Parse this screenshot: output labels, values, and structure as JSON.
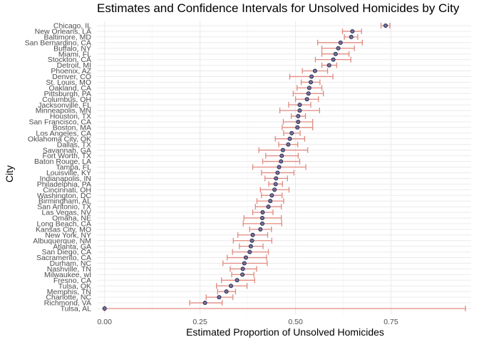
{
  "chart_data": {
    "type": "scatter",
    "title": "Estimates and Confidence Intervals for Unsolved Homicides by City",
    "xlabel": "Estimated Proportion of Unsolved Homicides",
    "ylabel": "City",
    "xlim": [
      -0.02,
      0.96
    ],
    "xticks": [
      "0.00",
      "0.25",
      "0.50",
      "0.75"
    ],
    "xtick_values": [
      0,
      0.25,
      0.5,
      0.75
    ],
    "grid": true,
    "colors": {
      "point_fill": "#6f6f9f",
      "point_edge": "#1f1f3a",
      "errorbar": "#e08a80",
      "grid": "#ebebeb"
    },
    "cities": [
      {
        "name": "Chicago, IL",
        "est": 0.736,
        "lo": 0.724,
        "hi": 0.747
      },
      {
        "name": "New Orleans, LA",
        "est": 0.649,
        "lo": 0.623,
        "hi": 0.673
      },
      {
        "name": "Baltimore, MD",
        "est": 0.646,
        "lo": 0.628,
        "hi": 0.663
      },
      {
        "name": "San Bernardino, CA",
        "est": 0.618,
        "lo": 0.558,
        "hi": 0.675
      },
      {
        "name": "Buffalo, NY",
        "est": 0.612,
        "lo": 0.569,
        "hi": 0.654
      },
      {
        "name": "Miami, FL",
        "est": 0.605,
        "lo": 0.569,
        "hi": 0.64
      },
      {
        "name": "Stockton, CA",
        "est": 0.599,
        "lo": 0.552,
        "hi": 0.645
      },
      {
        "name": "Detroit, MI",
        "est": 0.588,
        "lo": 0.569,
        "hi": 0.608
      },
      {
        "name": "Phoenix, AZ",
        "est": 0.551,
        "lo": 0.518,
        "hi": 0.584
      },
      {
        "name": "Denver, CO",
        "est": 0.542,
        "lo": 0.485,
        "hi": 0.598
      },
      {
        "name": "St. Louis, MO",
        "est": 0.54,
        "lo": 0.515,
        "hi": 0.564
      },
      {
        "name": "Oakland, CA",
        "est": 0.536,
        "lo": 0.504,
        "hi": 0.569
      },
      {
        "name": "Pittsburgh, PA",
        "est": 0.534,
        "lo": 0.494,
        "hi": 0.573
      },
      {
        "name": "Columbus, OH",
        "est": 0.53,
        "lo": 0.5,
        "hi": 0.56
      },
      {
        "name": "Jacksonville, FL",
        "est": 0.511,
        "lo": 0.482,
        "hi": 0.54
      },
      {
        "name": "Minneapolis, MN",
        "est": 0.511,
        "lo": 0.459,
        "hi": 0.563
      },
      {
        "name": "Houston, TX",
        "est": 0.507,
        "lo": 0.489,
        "hi": 0.526
      },
      {
        "name": "San Francisco, CA",
        "est": 0.507,
        "lo": 0.468,
        "hi": 0.545
      },
      {
        "name": "Boston, MA",
        "est": 0.505,
        "lo": 0.465,
        "hi": 0.545
      },
      {
        "name": "Los Angeles, CA",
        "est": 0.49,
        "lo": 0.469,
        "hi": 0.512
      },
      {
        "name": "Oklahoma City, OK",
        "est": 0.485,
        "lo": 0.447,
        "hi": 0.524
      },
      {
        "name": "Dallas, TX",
        "est": 0.481,
        "lo": 0.456,
        "hi": 0.506
      },
      {
        "name": "Savannah, GA",
        "est": 0.467,
        "lo": 0.404,
        "hi": 0.532
      },
      {
        "name": "Fort Worth, TX",
        "est": 0.464,
        "lo": 0.422,
        "hi": 0.507
      },
      {
        "name": "Baton Rouge, LA",
        "est": 0.462,
        "lo": 0.414,
        "hi": 0.511
      },
      {
        "name": "Tampa, FL",
        "est": 0.457,
        "lo": 0.388,
        "hi": 0.527
      },
      {
        "name": "Louisville, KY",
        "est": 0.453,
        "lo": 0.411,
        "hi": 0.496
      },
      {
        "name": "Indianapolis, IN",
        "est": 0.449,
        "lo": 0.42,
        "hi": 0.479
      },
      {
        "name": "Philadelphia, PA",
        "est": 0.448,
        "lo": 0.43,
        "hi": 0.466
      },
      {
        "name": "Cincinnati, OH",
        "est": 0.445,
        "lo": 0.408,
        "hi": 0.483
      },
      {
        "name": "Washington, DC",
        "est": 0.438,
        "lo": 0.411,
        "hi": 0.465
      },
      {
        "name": "Birmingham, AL",
        "est": 0.434,
        "lo": 0.399,
        "hi": 0.469
      },
      {
        "name": "San Antonio, TX",
        "est": 0.429,
        "lo": 0.395,
        "hi": 0.463
      },
      {
        "name": "Las Vegas, NV",
        "est": 0.414,
        "lo": 0.388,
        "hi": 0.441
      },
      {
        "name": "Omaha, NE",
        "est": 0.413,
        "lo": 0.365,
        "hi": 0.463
      },
      {
        "name": "Long Beach, CA",
        "est": 0.413,
        "lo": 0.363,
        "hi": 0.464
      },
      {
        "name": "Kansas City, MO",
        "est": 0.408,
        "lo": 0.38,
        "hi": 0.437
      },
      {
        "name": "New York, NY",
        "est": 0.388,
        "lo": 0.349,
        "hi": 0.427
      },
      {
        "name": "Albuquerque, NM",
        "est": 0.386,
        "lo": 0.337,
        "hi": 0.438
      },
      {
        "name": "Atlanta, GA",
        "est": 0.383,
        "lo": 0.353,
        "hi": 0.415
      },
      {
        "name": "San Diego, CA",
        "est": 0.38,
        "lo": 0.335,
        "hi": 0.429
      },
      {
        "name": "Sacramento, CA",
        "est": 0.37,
        "lo": 0.321,
        "hi": 0.424
      },
      {
        "name": "Durham, NC",
        "est": 0.366,
        "lo": 0.31,
        "hi": 0.426
      },
      {
        "name": "Nashville, TN",
        "est": 0.362,
        "lo": 0.329,
        "hi": 0.398
      },
      {
        "name": "Milwaukee, wI",
        "est": 0.361,
        "lo": 0.333,
        "hi": 0.391
      },
      {
        "name": "Fresno, CA",
        "est": 0.347,
        "lo": 0.306,
        "hi": 0.393
      },
      {
        "name": "Tulsa, OK",
        "est": 0.331,
        "lo": 0.293,
        "hi": 0.373
      },
      {
        "name": "Memphis, TN",
        "est": 0.319,
        "lo": 0.296,
        "hi": 0.343
      },
      {
        "name": "Charlotte, NC",
        "est": 0.3,
        "lo": 0.266,
        "hi": 0.336
      },
      {
        "name": "Richmond, VA",
        "est": 0.263,
        "lo": 0.223,
        "hi": 0.308
      },
      {
        "name": "Tulsa, AL",
        "est": 0.0,
        "lo": 0.0,
        "hi": 0.945
      }
    ]
  }
}
